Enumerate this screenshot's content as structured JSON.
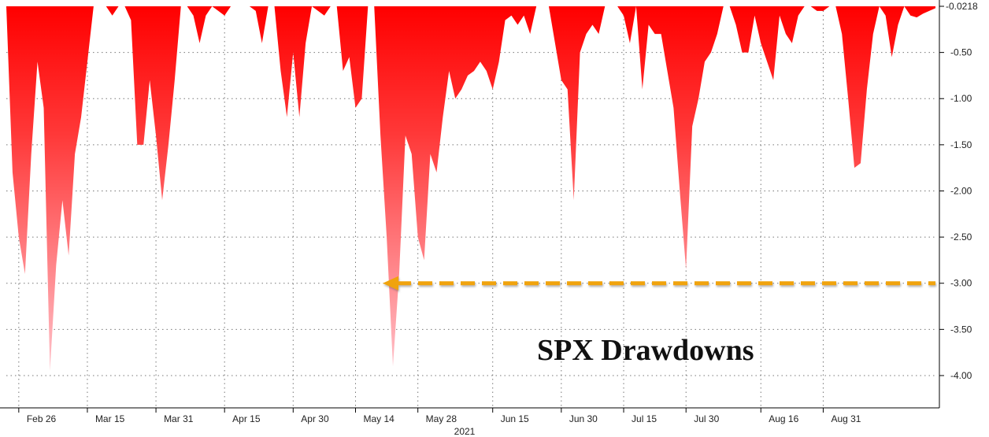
{
  "chart_data": {
    "type": "area",
    "title": "SPX Drawdowns",
    "xlabel": "",
    "ylabel": "",
    "x_year_label": "2021",
    "last_value_label": "-0.0218",
    "ylim": [
      -4.35,
      0
    ],
    "y_ticks": [
      -0.5,
      -1.0,
      -1.5,
      -2.0,
      -2.5,
      -3.0,
      -3.5,
      -4.0
    ],
    "y_tick_labels": [
      "-0.50",
      "-1.00",
      "-1.50",
      "-2.00",
      "-2.50",
      "-3.00",
      "-3.50",
      "-4.00"
    ],
    "x_tick_labels": [
      "Feb 26",
      "Mar 15",
      "Mar 31",
      "Apr 15",
      "Apr 30",
      "May 14",
      "May 28",
      "Jun 15",
      "Jun 30",
      "Jul 15",
      "Jul 30",
      "Aug 16",
      "Aug 31"
    ],
    "x_tick_index": [
      2,
      13,
      24,
      35,
      46,
      56,
      66,
      78,
      89,
      99,
      109,
      121,
      131
    ],
    "grid": true,
    "legend": "none",
    "reference_line": {
      "value": -3.0,
      "style": "dashed arrow",
      "color": "#f0a30a"
    },
    "colors": {
      "fill_top": "#ff0000",
      "fill_bottom": "#ffc2ca",
      "grid": "#777777",
      "axis": "#000000"
    },
    "series": [
      {
        "values": [
          0,
          -1.8,
          -2.5,
          -2.9,
          -1.6,
          -0.6,
          -1.1,
          -3.95,
          -2.8,
          -2.1,
          -2.7,
          -1.6,
          -1.2,
          -0.6,
          0,
          0,
          0,
          -0.1,
          0,
          0,
          -0.15,
          -1.5,
          -1.5,
          -0.8,
          -1.4,
          -2.1,
          -1.5,
          -0.8,
          0,
          0,
          -0.1,
          -0.4,
          -0.1,
          0,
          -0.05,
          -0.1,
          0,
          0,
          0,
          0,
          -0.05,
          -0.4,
          0,
          0,
          -0.7,
          -1.2,
          -0.5,
          -1.2,
          -0.4,
          0,
          -0.05,
          -0.1,
          0,
          0,
          -0.7,
          -0.55,
          -1.1,
          -1.0,
          0,
          0,
          -1.4,
          -2.5,
          -3.9,
          -2.9,
          -1.4,
          -1.6,
          -2.5,
          -2.75,
          -1.6,
          -1.8,
          -1.2,
          -0.7,
          -1.0,
          -0.9,
          -0.75,
          -0.7,
          -0.6,
          -0.7,
          -0.9,
          -0.6,
          -0.15,
          -0.1,
          -0.2,
          -0.1,
          -0.3,
          0,
          0,
          0,
          -0.4,
          -0.8,
          -0.9,
          -2.1,
          -0.5,
          -0.3,
          -0.2,
          -0.3,
          0,
          0,
          0,
          -0.1,
          -0.4,
          0,
          -0.9,
          -0.2,
          -0.3,
          -0.3,
          -0.7,
          -1.1,
          -2.0,
          -2.85,
          -1.3,
          -1.0,
          -0.6,
          -0.5,
          -0.3,
          0,
          0,
          -0.2,
          -0.5,
          -0.5,
          -0.1,
          -0.4,
          -0.6,
          -0.8,
          -0.1,
          -0.3,
          -0.4,
          -0.1,
          0,
          0,
          -0.05,
          -0.05,
          0,
          0,
          -0.3,
          -1.0,
          -1.75,
          -1.7,
          -0.9,
          -0.3,
          0,
          -0.1,
          -0.55,
          -0.2,
          0,
          -0.1,
          -0.12,
          -0.08,
          -0.05,
          -0.02
        ]
      }
    ]
  }
}
